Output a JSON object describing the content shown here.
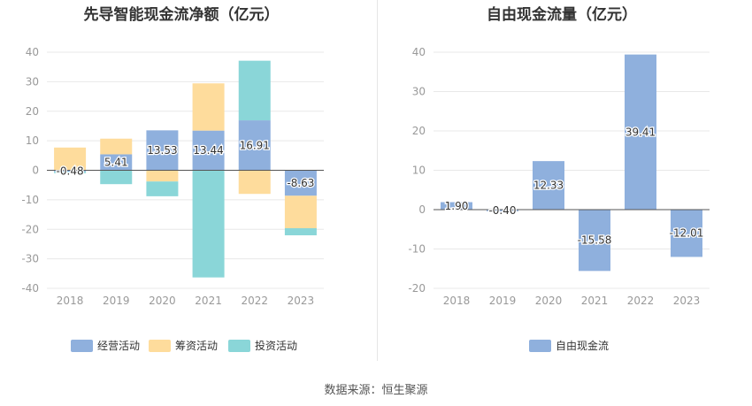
{
  "source": {
    "label": "数据来源：",
    "value": "恒生聚源"
  },
  "chart_data": [
    {
      "type": "bar",
      "stacked": true,
      "title": "先导智能现金流净额（亿元）",
      "categories": [
        "2018",
        "2019",
        "2020",
        "2021",
        "2022",
        "2023"
      ],
      "ylim": [
        -40,
        40
      ],
      "yticks": [
        -40,
        -30,
        -20,
        -10,
        0,
        10,
        20,
        30,
        40
      ],
      "grid": true,
      "legend_position": "bottom",
      "series": [
        {
          "name": "经营活动",
          "color": "#8fb0dd",
          "values": [
            -0.48,
            5.41,
            13.53,
            13.44,
            16.91,
            -8.63
          ],
          "labels": [
            "-0.48",
            "5.41",
            "13.53",
            "13.44",
            "16.91",
            "-8.63"
          ]
        },
        {
          "name": "筹资活动",
          "color": "#fedc9c",
          "values": [
            7.7,
            5.3,
            -3.8,
            16.0,
            -8.0,
            -11.0
          ]
        },
        {
          "name": "投资活动",
          "color": "#8ad6d8",
          "values": [
            -0.5,
            -4.7,
            -5.0,
            -36.3,
            20.2,
            -2.4
          ]
        }
      ]
    },
    {
      "type": "bar",
      "title": "自由现金流量（亿元）",
      "categories": [
        "2018",
        "2019",
        "2020",
        "2021",
        "2022",
        "2023"
      ],
      "ylim": [
        -20,
        40
      ],
      "yticks": [
        -20,
        -10,
        0,
        10,
        20,
        30,
        40
      ],
      "grid": true,
      "legend_position": "bottom",
      "series": [
        {
          "name": "自由现金流",
          "color": "#8fb0dd",
          "values": [
            1.9,
            -0.4,
            12.33,
            -15.58,
            39.41,
            -12.01
          ],
          "labels": [
            "1.90",
            "-0.40",
            "12.33",
            "-15.58",
            "39.41",
            "-12.01"
          ]
        }
      ]
    }
  ]
}
